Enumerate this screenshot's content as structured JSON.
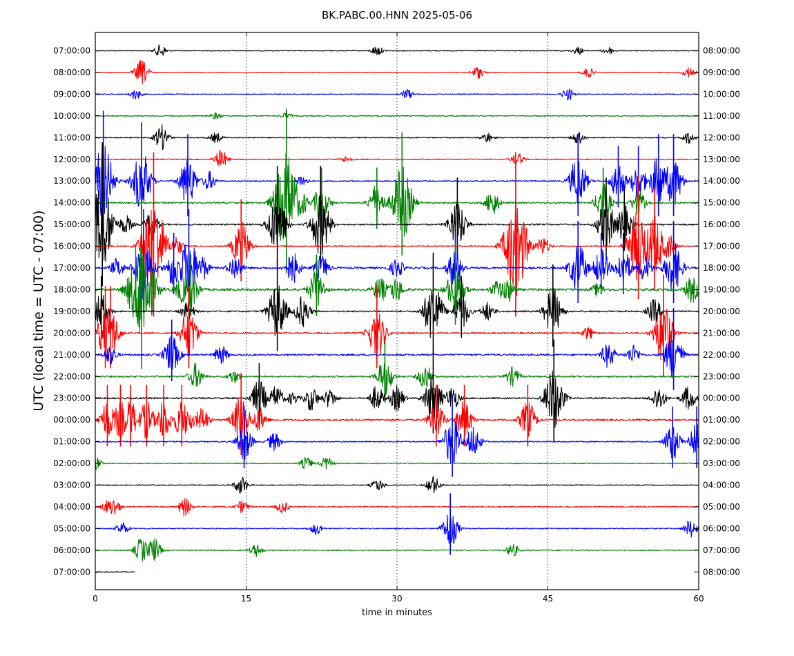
{
  "chart_data": {
    "type": "line",
    "title": "BK.PABC.00.HNN 2025-05-06",
    "xlabel": "time in minutes",
    "ylabel": "UTC (local time = UTC - 07:00)",
    "xlim": [
      0,
      60
    ],
    "x_ticks": [
      0,
      15,
      30,
      45,
      60
    ],
    "vertical_grid": [
      15,
      30,
      45
    ],
    "grid": "dotted vertical lines",
    "series_colors": [
      "#000000",
      "#ff0000",
      "#0000ff",
      "#008000"
    ],
    "left_labels": [
      "07:00:00",
      "08:00:00",
      "09:00:00",
      "10:00:00",
      "11:00:00",
      "12:00:00",
      "13:00:00",
      "14:00:00",
      "15:00:00",
      "16:00:00",
      "17:00:00",
      "18:00:00",
      "19:00:00",
      "20:00:00",
      "21:00:00",
      "22:00:00",
      "23:00:00",
      "00:00:00",
      "01:00:00",
      "02:00:00",
      "03:00:00",
      "04:00:00",
      "05:00:00",
      "06:00:00",
      "07:00:00"
    ],
    "right_labels": [
      "08:00:00",
      "09:00:00",
      "10:00:00",
      "11:00:00",
      "12:00:00",
      "13:00:00",
      "14:00:00",
      "15:00:00",
      "16:00:00",
      "17:00:00",
      "18:00:00",
      "19:00:00",
      "20:00:00",
      "21:00:00",
      "22:00:00",
      "23:00:00",
      "00:00:00",
      "01:00:00",
      "02:00:00",
      "03:00:00",
      "04:00:00",
      "05:00:00",
      "06:00:00",
      "07:00:00",
      "08:00:00"
    ],
    "rows": [
      {
        "noise": 0.25,
        "end_minute": 60,
        "events": [
          [
            6.5,
            1
          ],
          [
            28,
            0.8
          ],
          [
            48,
            0.6
          ],
          [
            51,
            0.6
          ]
        ]
      },
      {
        "noise": 0.25,
        "end_minute": 60,
        "events": [
          [
            4.6,
            2
          ],
          [
            38,
            1
          ],
          [
            49,
            0.8
          ],
          [
            59,
            0.8
          ]
        ]
      },
      {
        "noise": 0.3,
        "end_minute": 60,
        "events": [
          [
            4,
            0.8
          ],
          [
            31,
            0.8
          ],
          [
            47,
            1
          ]
        ]
      },
      {
        "noise": 0.35,
        "end_minute": 60,
        "events": [
          [
            12,
            0.5
          ],
          [
            19,
            0.5
          ]
        ]
      },
      {
        "noise": 0.35,
        "end_minute": 60,
        "events": [
          [
            6.6,
            2
          ],
          [
            12,
            0.8
          ],
          [
            39,
            0.8
          ],
          [
            48,
            1
          ],
          [
            59,
            1
          ]
        ]
      },
      {
        "noise": 0.35,
        "end_minute": 60,
        "events": [
          [
            12.5,
            1.5
          ],
          [
            25,
            0.5
          ],
          [
            42,
            1
          ]
        ]
      },
      {
        "noise": 0.4,
        "end_minute": 60,
        "events": [
          [
            0.8,
            6
          ],
          [
            4.6,
            5
          ],
          [
            9.2,
            4
          ],
          [
            11.3,
            1.5
          ],
          [
            20.5,
            1
          ],
          [
            48,
            4
          ],
          [
            52,
            3
          ],
          [
            54,
            3
          ],
          [
            56,
            4
          ],
          [
            57.5,
            4
          ]
        ]
      },
      {
        "noise": 0.55,
        "end_minute": 60,
        "events": [
          [
            19,
            8
          ],
          [
            20.5,
            2
          ],
          [
            22.5,
            3
          ],
          [
            28,
            3
          ],
          [
            30.5,
            6
          ],
          [
            31,
            2
          ],
          [
            39.5,
            2
          ],
          [
            50.5,
            3
          ],
          [
            54,
            2
          ]
        ]
      },
      {
        "noise": 0.5,
        "end_minute": 60,
        "events": [
          [
            0.7,
            7
          ],
          [
            3,
            1.5
          ],
          [
            5.6,
            2
          ],
          [
            18.1,
            5
          ],
          [
            22.4,
            5
          ],
          [
            36,
            4
          ],
          [
            50.8,
            4
          ],
          [
            52.6,
            3
          ]
        ]
      },
      {
        "noise": 0.45,
        "end_minute": 60,
        "events": [
          [
            5.8,
            8
          ],
          [
            8.1,
            1.5
          ],
          [
            14.5,
            4
          ],
          [
            41.8,
            8
          ],
          [
            44.5,
            1.5
          ],
          [
            54,
            6
          ],
          [
            55.6,
            5
          ],
          [
            57,
            2
          ]
        ]
      },
      {
        "noise": 0.7,
        "end_minute": 60,
        "events": [
          [
            2.2,
            1.5
          ],
          [
            4.8,
            5
          ],
          [
            7.8,
            3
          ],
          [
            9.3,
            5
          ],
          [
            10.6,
            2
          ],
          [
            13.9,
            2
          ],
          [
            19.6,
            2.5
          ],
          [
            22.5,
            2
          ],
          [
            30,
            1.5
          ],
          [
            35.8,
            3
          ],
          [
            48,
            4
          ],
          [
            50.3,
            3
          ],
          [
            52.5,
            3
          ],
          [
            54.6,
            2
          ],
          [
            57.5,
            4
          ]
        ]
      },
      {
        "noise": 0.75,
        "end_minute": 60,
        "events": [
          [
            4.6,
            9
          ],
          [
            8.6,
            2
          ],
          [
            9.5,
            3
          ],
          [
            22,
            3
          ],
          [
            28.3,
            2
          ],
          [
            29.9,
            2
          ],
          [
            35.8,
            4
          ],
          [
            40,
            1.5
          ],
          [
            41,
            2
          ],
          [
            50,
            1
          ],
          [
            59.3,
            2
          ]
        ]
      },
      {
        "noise": 0.5,
        "end_minute": 60,
        "events": [
          [
            0.6,
            3
          ],
          [
            9.2,
            1.5
          ],
          [
            18.1,
            4.5
          ],
          [
            20.6,
            2.5
          ],
          [
            33.6,
            5
          ],
          [
            36.4,
            3
          ],
          [
            39,
            1.5
          ],
          [
            45.5,
            4
          ],
          [
            55.6,
            2
          ]
        ]
      },
      {
        "noise": 0.5,
        "end_minute": 60,
        "events": [
          [
            1,
            4
          ],
          [
            1.5,
            4
          ],
          [
            9.3,
            4
          ],
          [
            28,
            4
          ],
          [
            49,
            1
          ],
          [
            56.5,
            5
          ]
        ]
      },
      {
        "noise": 0.6,
        "end_minute": 60,
        "events": [
          [
            1.5,
            1.5
          ],
          [
            7.6,
            3
          ],
          [
            12.5,
            1.5
          ],
          [
            51,
            2
          ],
          [
            53.5,
            1.5
          ],
          [
            57.5,
            4
          ]
        ]
      },
      {
        "noise": 0.55,
        "end_minute": 60,
        "events": [
          [
            10,
            2
          ],
          [
            13.8,
            1
          ],
          [
            28.8,
            3
          ],
          [
            32.8,
            2
          ],
          [
            41.5,
            1.5
          ]
        ]
      },
      {
        "noise": 0.5,
        "end_minute": 60,
        "events": [
          [
            16.3,
            3
          ],
          [
            18,
            2
          ],
          [
            19.6,
            1
          ],
          [
            21.5,
            2
          ],
          [
            23.3,
            1.5
          ],
          [
            28,
            2
          ],
          [
            30,
            2
          ],
          [
            33.6,
            4
          ],
          [
            35.5,
            2
          ],
          [
            45.6,
            5
          ],
          [
            56,
            2
          ],
          [
            59,
            2
          ]
        ]
      },
      {
        "noise": 0.6,
        "end_minute": 60,
        "events": [
          [
            1.2,
            3
          ],
          [
            2.5,
            3
          ],
          [
            3.5,
            3
          ],
          [
            5.1,
            3
          ],
          [
            6.8,
            3
          ],
          [
            8.6,
            3
          ],
          [
            9.2,
            2
          ],
          [
            10.6,
            2
          ],
          [
            14.5,
            4
          ],
          [
            16.3,
            2
          ],
          [
            33.9,
            3
          ],
          [
            36.7,
            3
          ],
          [
            43,
            3
          ]
        ]
      },
      {
        "noise": 0.4,
        "end_minute": 60,
        "events": [
          [
            14.8,
            3
          ],
          [
            17.8,
            1.5
          ],
          [
            35.5,
            4
          ],
          [
            37.6,
            2.5
          ],
          [
            57.4,
            3
          ],
          [
            59.8,
            3
          ]
        ]
      },
      {
        "noise": 0.3,
        "end_minute": 60,
        "events": [
          [
            0,
            1
          ],
          [
            21,
            1
          ],
          [
            23,
            1
          ]
        ]
      },
      {
        "noise": 0.3,
        "end_minute": 60,
        "events": [
          [
            14.5,
            1.5
          ],
          [
            28.1,
            1
          ],
          [
            33.6,
            1.5
          ]
        ]
      },
      {
        "noise": 0.35,
        "end_minute": 60,
        "events": [
          [
            1.2,
            1
          ],
          [
            1.8,
            1.5
          ],
          [
            8.9,
            1.5
          ],
          [
            14.6,
            1
          ],
          [
            18.6,
            1
          ]
        ]
      },
      {
        "noise": 0.35,
        "end_minute": 60,
        "events": [
          [
            2.7,
            1
          ],
          [
            22,
            1
          ],
          [
            35.3,
            3
          ],
          [
            59.2,
            1.5
          ]
        ]
      },
      {
        "noise": 0.35,
        "end_minute": 60,
        "events": [
          [
            4.6,
            2
          ],
          [
            5.8,
            2
          ],
          [
            16,
            1
          ],
          [
            41.5,
            1
          ]
        ]
      },
      {
        "noise": 0.3,
        "end_minute": 4,
        "events": []
      }
    ]
  }
}
